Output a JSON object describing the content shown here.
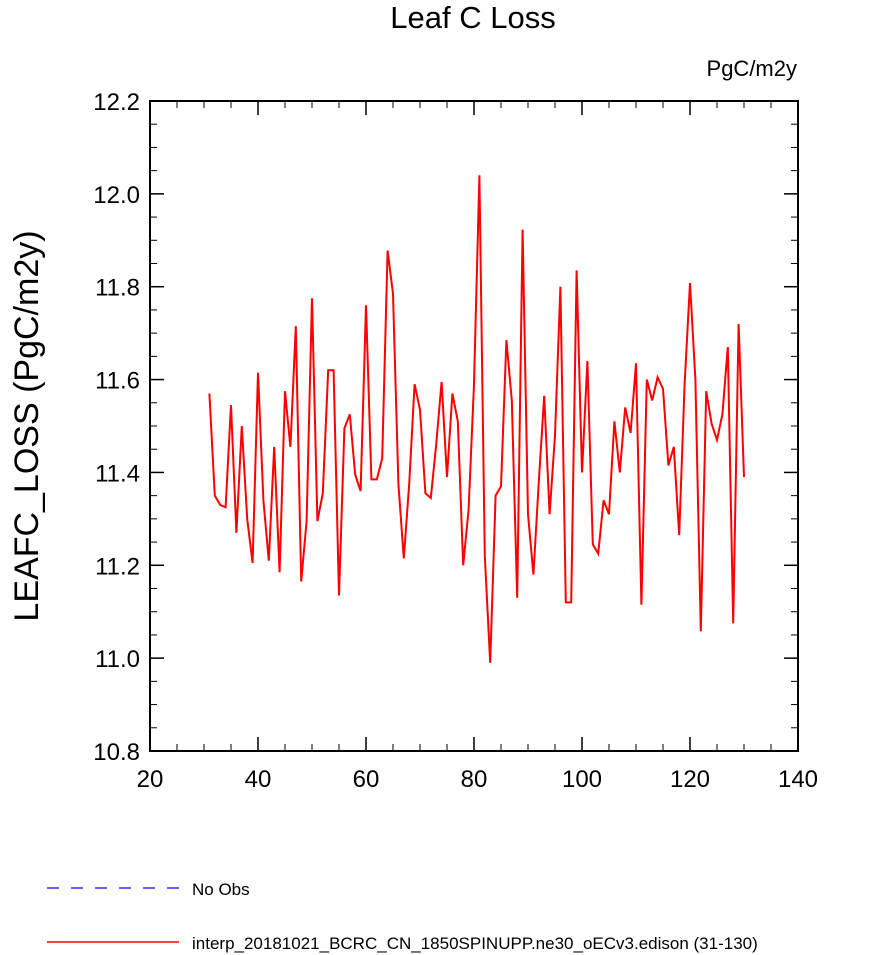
{
  "chart_data": {
    "type": "line",
    "title": "Leaf C Loss",
    "units_label": "PgC/m2y",
    "xlabel": "",
    "ylabel": "LEAFC_LOSS  (PgC/m2y)",
    "xlim": [
      20,
      140
    ],
    "ylim": [
      10.8,
      12.2
    ],
    "x_ticks": [
      20,
      40,
      60,
      80,
      100,
      120,
      140
    ],
    "x_tick_labels": [
      "20",
      "40",
      "60",
      "80",
      "100",
      "120",
      "140"
    ],
    "y_ticks": [
      10.8,
      11.0,
      11.2,
      11.4,
      11.6,
      11.8,
      12.0,
      12.2
    ],
    "y_tick_labels": [
      "10.8",
      "11.0",
      "11.2",
      "11.4",
      "11.6",
      "11.8",
      "12.0",
      "12.2"
    ],
    "x_minor_step": 5,
    "y_minor_step": 0.05,
    "grid": false,
    "legend_position": "bottom-left, below plot",
    "series": [
      {
        "name": "No Obs",
        "color": "#3333ff",
        "style": "dashed",
        "x": [],
        "values": []
      },
      {
        "name": "interp_20181021_BCRC_CN_1850SPINUPP.ne30_oECv3.edison (31-130)",
        "color": "#ff0000",
        "style": "solid",
        "x": [
          31,
          32,
          33,
          34,
          35,
          36,
          37,
          38,
          39,
          40,
          41,
          42,
          43,
          44,
          45,
          46,
          47,
          48,
          49,
          50,
          51,
          52,
          53,
          54,
          55,
          56,
          57,
          58,
          59,
          60,
          61,
          62,
          63,
          64,
          65,
          66,
          67,
          68,
          69,
          70,
          71,
          72,
          73,
          74,
          75,
          76,
          77,
          78,
          79,
          80,
          81,
          82,
          83,
          84,
          85,
          86,
          87,
          88,
          89,
          90,
          91,
          92,
          93,
          94,
          95,
          96,
          97,
          98,
          99,
          100,
          101,
          102,
          103,
          104,
          105,
          106,
          107,
          108,
          109,
          110,
          111,
          112,
          113,
          114,
          115,
          116,
          117,
          118,
          119,
          120,
          121,
          122,
          123,
          124,
          125,
          126,
          127,
          128,
          129,
          130
        ],
        "values": [
          11.57,
          11.35,
          11.33,
          11.325,
          11.545,
          11.27,
          11.5,
          11.3,
          11.205,
          11.615,
          11.34,
          11.21,
          11.455,
          11.185,
          11.575,
          11.455,
          11.715,
          11.165,
          11.295,
          11.775,
          11.295,
          11.355,
          11.62,
          11.62,
          11.135,
          11.495,
          11.525,
          11.395,
          11.36,
          11.76,
          11.385,
          11.385,
          11.43,
          11.878,
          11.785,
          11.375,
          11.215,
          11.375,
          11.59,
          11.535,
          11.355,
          11.345,
          11.46,
          11.595,
          11.39,
          11.57,
          11.51,
          11.2,
          11.32,
          11.59,
          12.04,
          11.22,
          10.99,
          11.35,
          11.37,
          11.685,
          11.555,
          11.13,
          11.923,
          11.31,
          11.18,
          11.38,
          11.565,
          11.31,
          11.48,
          11.8,
          11.12,
          11.12,
          11.835,
          11.4,
          11.64,
          11.245,
          11.225,
          11.34,
          11.31,
          11.51,
          11.4,
          11.54,
          11.485,
          11.635,
          11.115,
          11.6,
          11.555,
          11.605,
          11.58,
          11.415,
          11.455,
          11.265,
          11.59,
          11.808,
          11.6,
          11.058,
          11.575,
          11.505,
          11.47,
          11.525,
          11.67,
          11.075,
          11.72,
          11.39
        ]
      }
    ]
  }
}
